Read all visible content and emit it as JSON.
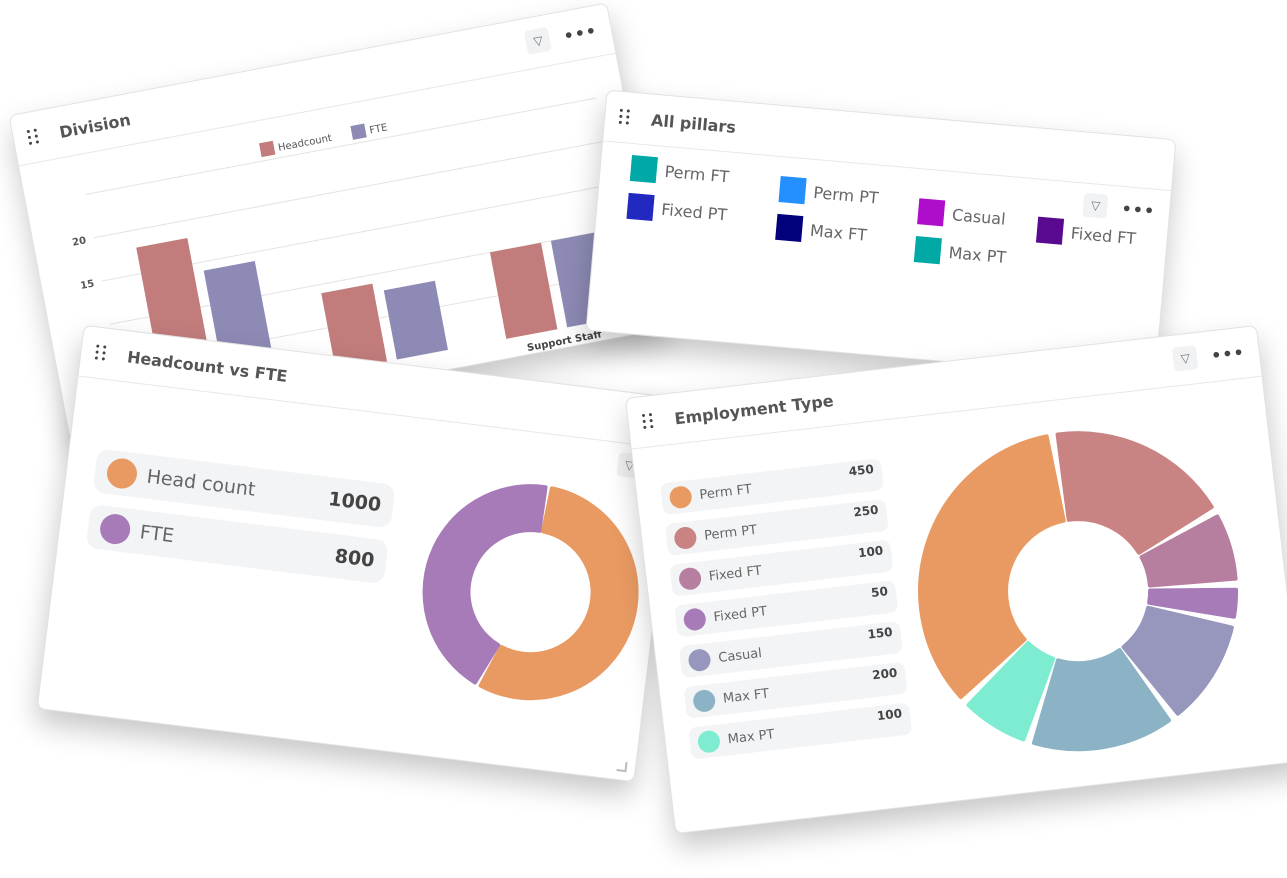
{
  "icons": {
    "drag": "drag-handle-icon",
    "filter": "filter-icon",
    "more": "more-horizontal-icon",
    "resize": "resize-corner-icon"
  },
  "division": {
    "title": "Division",
    "more_label": "•••",
    "filter_label": "▽",
    "chart_data": {
      "type": "bar",
      "categories": [
        "",
        "",
        "Support Staff"
      ],
      "series": [
        {
          "name": "Headcount",
          "color": "#c27c7c",
          "values": [
            18,
            9,
            10
          ]
        },
        {
          "name": "FTE",
          "color": "#8d8bb5",
          "values": [
            14,
            8,
            10
          ]
        }
      ],
      "yticks": [
        15,
        20
      ],
      "ylim": [
        0,
        25
      ],
      "grid": true,
      "legend": "top-center"
    }
  },
  "pillars": {
    "title": "All pillars",
    "more_label": "•••",
    "filter_label": "▽",
    "items": [
      {
        "label": "Perm FT",
        "color": "#00a9a5"
      },
      {
        "label": "Fixed PT",
        "color": "#2229c0"
      },
      {
        "label": "Perm PT",
        "color": "#2490ff"
      },
      {
        "label": "Max FT",
        "color": "#02007a"
      },
      {
        "label": "Casual",
        "color": "#ae0ecc"
      },
      {
        "label": "Max PT",
        "color": "#00a9a5"
      },
      {
        "label": "Fixed FT",
        "color": "#5a0a90"
      }
    ]
  },
  "headcount": {
    "title": "Headcount vs FTE",
    "filter_label": "▽",
    "chart_data": {
      "type": "pie",
      "donut": true,
      "slices": [
        {
          "label": "Head count",
          "value": 1000,
          "color": "#e99a62"
        },
        {
          "label": "FTE",
          "value": 800,
          "color": "#a77bb8"
        }
      ]
    }
  },
  "employment": {
    "title": "Employment Type",
    "more_label": "•••",
    "filter_label": "▽",
    "chart_data": {
      "type": "pie",
      "donut": true,
      "slices": [
        {
          "label": "Perm FT",
          "value": 450,
          "color": "#e99a62"
        },
        {
          "label": "Perm PT",
          "value": 250,
          "color": "#c98383"
        },
        {
          "label": "Fixed FT",
          "value": 100,
          "color": "#b77f9f"
        },
        {
          "label": "Fixed PT",
          "value": 50,
          "color": "#a77bb8"
        },
        {
          "label": "Casual",
          "value": 150,
          "color": "#9796bd"
        },
        {
          "label": "Max FT",
          "value": 200,
          "color": "#8bb3c5"
        },
        {
          "label": "Max PT",
          "value": 100,
          "color": "#7eecd1"
        }
      ]
    }
  }
}
